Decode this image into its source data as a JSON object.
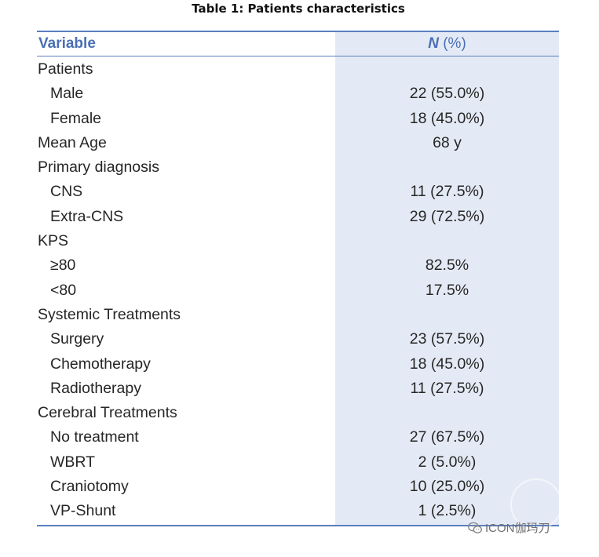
{
  "caption": "Table 1: Patients characteristics",
  "columns": {
    "variable": "Variable",
    "n_symbol": "N",
    "n_suffix": " (%)"
  },
  "rows": [
    {
      "label": "Patients",
      "value": "",
      "indent": false
    },
    {
      "label": "Male",
      "value": "22 (55.0%)",
      "indent": true
    },
    {
      "label": "Female",
      "value": "18 (45.0%)",
      "indent": true
    },
    {
      "label": "Mean Age",
      "value": "68 y",
      "indent": false
    },
    {
      "label": "Primary diagnosis",
      "value": "",
      "indent": false
    },
    {
      "label": "CNS",
      "value": "11 (27.5%)",
      "indent": true
    },
    {
      "label": "Extra-CNS",
      "value": "29 (72.5%)",
      "indent": true
    },
    {
      "label": "KPS",
      "value": "",
      "indent": false
    },
    {
      "label": "≥80",
      "value": "82.5%",
      "indent": true
    },
    {
      "label": "<80",
      "value": "17.5%",
      "indent": true
    },
    {
      "label": "Systemic Treatments",
      "value": "",
      "indent": false
    },
    {
      "label": "Surgery",
      "value": "23 (57.5%)",
      "indent": true
    },
    {
      "label": "Chemotherapy",
      "value": "18 (45.0%)",
      "indent": true
    },
    {
      "label": "Radiotherapy",
      "value": "11 (27.5%)",
      "indent": true
    },
    {
      "label": "Cerebral Treatments",
      "value": "",
      "indent": false
    },
    {
      "label": "No treatment",
      "value": "27 (67.5%)",
      "indent": true
    },
    {
      "label": "WBRT",
      "value": "2 (5.0%)",
      "indent": true
    },
    {
      "label": "Craniotomy",
      "value": "10 (25.0%)",
      "indent": true
    },
    {
      "label": "VP-Shunt",
      "value": "1 (2.5%)",
      "indent": true
    }
  ],
  "watermark": {
    "text": "ICON伽玛刀",
    "icon": "wechat-icon"
  },
  "colors": {
    "accent": "#4a6fb5",
    "rule": "#5b7fbf",
    "column_shade": "#e4eaf5"
  }
}
